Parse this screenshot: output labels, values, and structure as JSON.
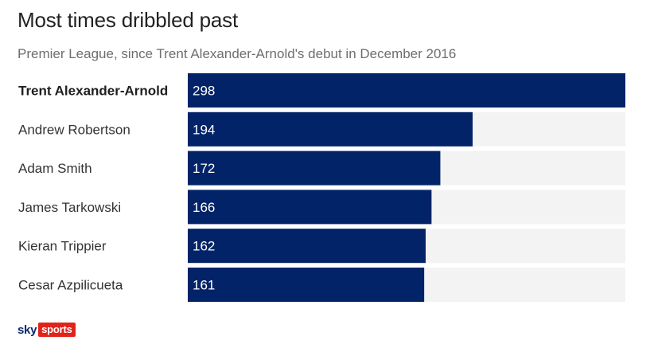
{
  "title": "Most times dribbled past",
  "subtitle": "Premier League, since Trent Alexander-Arnold's debut in December 2016",
  "logo": {
    "sky": "sky",
    "sports": "sports"
  },
  "colors": {
    "bar": "#022368",
    "track": "#f3f3f3",
    "logo_red": "#e2231a"
  },
  "chart_data": {
    "type": "bar",
    "orientation": "horizontal",
    "categories": [
      "Trent Alexander-Arnold",
      "Andrew Robertson",
      "Adam Smith",
      "James Tarkowski",
      "Kieran Trippier",
      "Cesar Azpilicueta"
    ],
    "values": [
      298,
      194,
      172,
      166,
      162,
      161
    ],
    "highlight": "Trent Alexander-Arnold",
    "xlim": [
      0,
      298
    ],
    "grid": false,
    "legend": "none",
    "title": "Most times dribbled past",
    "subtitle": "Premier League, since Trent Alexander-Arnold's debut in December 2016"
  }
}
